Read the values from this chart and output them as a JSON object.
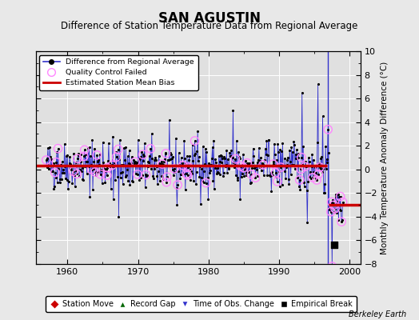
{
  "title": "SAN AGUSTIN",
  "subtitle": "Difference of Station Temperature Data from Regional Average",
  "ylabel": "Monthly Temperature Anomaly Difference (°C)",
  "xlim": [
    1955.5,
    2001.5
  ],
  "ylim": [
    -8,
    10
  ],
  "yticks": [
    -8,
    -6,
    -4,
    -2,
    0,
    2,
    4,
    6,
    8,
    10
  ],
  "xticks": [
    1960,
    1970,
    1980,
    1990,
    2000
  ],
  "fig_bg_color": "#e8e8e8",
  "plot_bg_color": "#e0e0e0",
  "grid_color": "#ffffff",
  "title_fontsize": 12,
  "subtitle_fontsize": 8.5,
  "bias_color": "#cc0000",
  "line_color": "#3333cc",
  "dot_color": "#000000",
  "qc_color": "#ff88ff",
  "watermark": "Berkeley Earth",
  "seed": 42,
  "num_points": 504,
  "start_year": 1957.0,
  "end_year": 1999.0,
  "bias_y1": 0.35,
  "bias_y2": -3.0,
  "bias_x1_start": 1955.5,
  "bias_x1_end": 1996.8,
  "bias_x2_start": 1997.0,
  "bias_x2_end": 2001.5,
  "time_obs_change_x": 1996.9,
  "empirical_break_x": 1997.75,
  "empirical_break_y": -6.35
}
